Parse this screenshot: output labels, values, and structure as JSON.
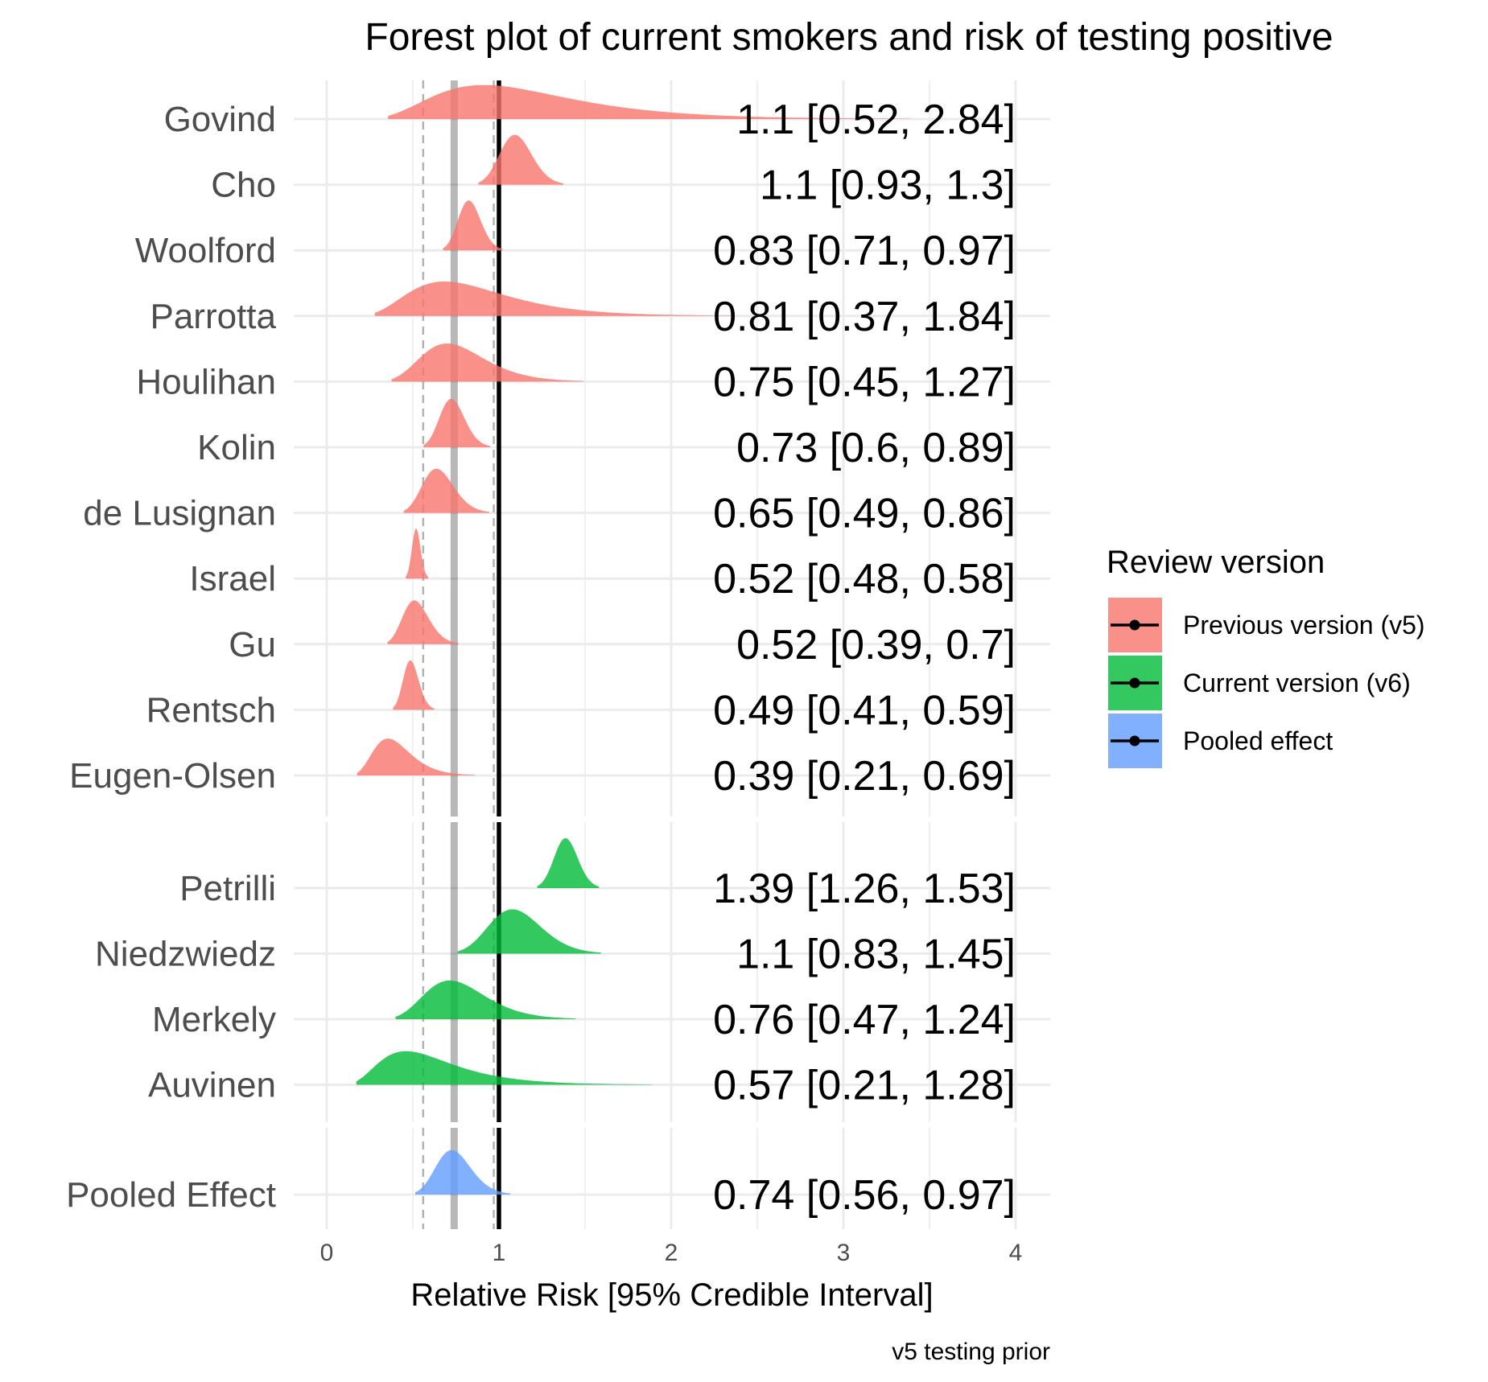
{
  "chart_data": {
    "type": "forest",
    "title": "Forest plot of current smokers and risk of testing positive",
    "xlabel": "Relative Risk [95% Credible Interval]",
    "caption": "v5 testing prior",
    "xlim": [
      0,
      4
    ],
    "xticks": [
      "0",
      "1",
      "2",
      "3",
      "4"
    ],
    "grid": true,
    "reference_lines": {
      "null_effect": 1,
      "pooled_estimate": 0.74,
      "pooled_lower": 0.56,
      "pooled_upper": 0.97
    },
    "legend": {
      "title": "Review version",
      "position": "right",
      "items": [
        {
          "label": "Previous version (v5)",
          "color": "#F8766D"
        },
        {
          "label": "Current version (v6)",
          "color": "#00BA38"
        },
        {
          "label": "Pooled effect",
          "color": "#619CFF"
        }
      ]
    },
    "groups": [
      {
        "version": "Previous version (v5)",
        "color": "#F8766D",
        "studies": [
          {
            "study": "Govind",
            "estimate": 1.1,
            "lower": 0.52,
            "upper": 2.84,
            "label": "1.1 [0.52, 2.84]"
          },
          {
            "study": "Cho",
            "estimate": 1.1,
            "lower": 0.93,
            "upper": 1.3,
            "label": "1.1 [0.93, 1.3]"
          },
          {
            "study": "Woolford",
            "estimate": 0.83,
            "lower": 0.71,
            "upper": 0.97,
            "label": "0.83 [0.71, 0.97]"
          },
          {
            "study": "Parrotta",
            "estimate": 0.81,
            "lower": 0.37,
            "upper": 1.84,
            "label": "0.81 [0.37, 1.84]"
          },
          {
            "study": "Houlihan",
            "estimate": 0.75,
            "lower": 0.45,
            "upper": 1.27,
            "label": "0.75 [0.45, 1.27]"
          },
          {
            "study": "Kolin",
            "estimate": 0.73,
            "lower": 0.6,
            "upper": 0.89,
            "label": "0.73 [0.6, 0.89]"
          },
          {
            "study": "de Lusignan",
            "estimate": 0.65,
            "lower": 0.49,
            "upper": 0.86,
            "label": "0.65 [0.49, 0.86]"
          },
          {
            "study": "Israel",
            "estimate": 0.52,
            "lower": 0.48,
            "upper": 0.58,
            "label": "0.52 [0.48, 0.58]"
          },
          {
            "study": "Gu",
            "estimate": 0.52,
            "lower": 0.39,
            "upper": 0.7,
            "label": "0.52 [0.39, 0.7]"
          },
          {
            "study": "Rentsch",
            "estimate": 0.49,
            "lower": 0.41,
            "upper": 0.59,
            "label": "0.49 [0.41, 0.59]"
          },
          {
            "study": "Eugen-Olsen",
            "estimate": 0.39,
            "lower": 0.21,
            "upper": 0.69,
            "label": "0.39 [0.21, 0.69]"
          }
        ]
      },
      {
        "version": "Current version (v6)",
        "color": "#00BA38",
        "studies": [
          {
            "study": "Petrilli",
            "estimate": 1.39,
            "lower": 1.26,
            "upper": 1.53,
            "label": "1.39 [1.26, 1.53]"
          },
          {
            "study": "Niedzwiedz",
            "estimate": 1.1,
            "lower": 0.83,
            "upper": 1.45,
            "label": "1.1 [0.83, 1.45]"
          },
          {
            "study": "Merkely",
            "estimate": 0.76,
            "lower": 0.47,
            "upper": 1.24,
            "label": "0.76 [0.47, 1.24]"
          },
          {
            "study": "Auvinen",
            "estimate": 0.57,
            "lower": 0.21,
            "upper": 1.28,
            "label": "0.57 [0.21, 1.28]"
          }
        ]
      },
      {
        "version": "Pooled effect",
        "color": "#619CFF",
        "studies": [
          {
            "study": "Pooled Effect",
            "estimate": 0.74,
            "lower": 0.56,
            "upper": 0.97,
            "label": "0.74 [0.56, 0.97]"
          }
        ]
      }
    ]
  }
}
